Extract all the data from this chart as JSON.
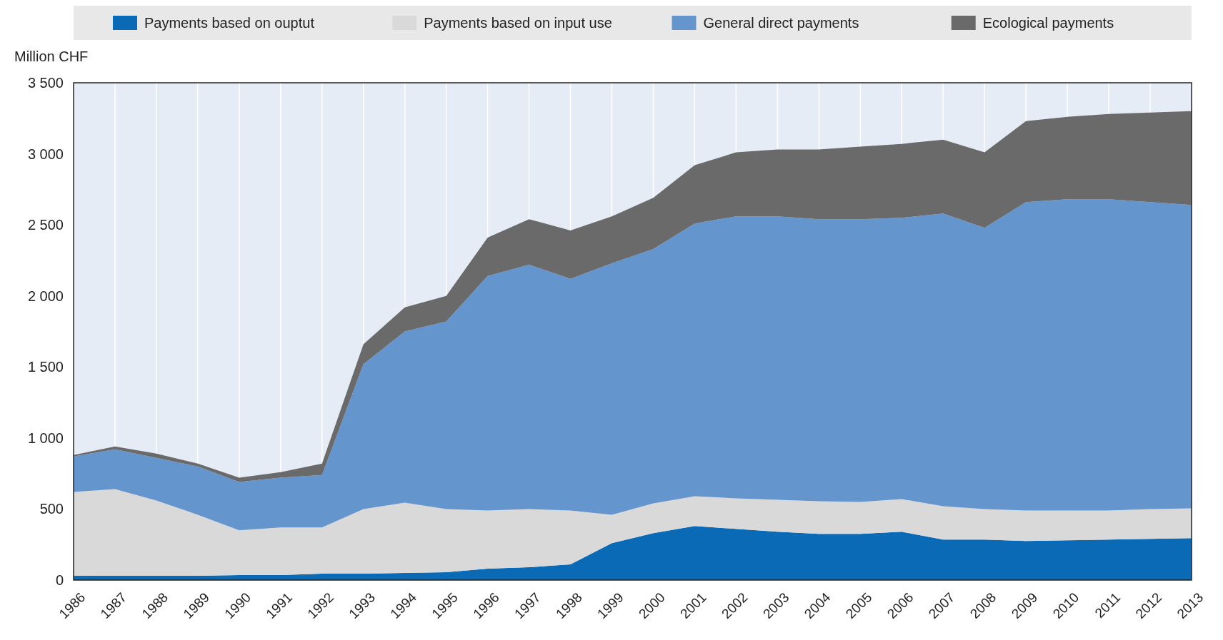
{
  "chart_data": {
    "type": "area",
    "stacked": true,
    "ylabel": "Million CHF",
    "legend": "top",
    "grid": "x",
    "categories": [
      "1986",
      "1987",
      "1988",
      "1989",
      "1990",
      "1991",
      "1992",
      "1993",
      "1994",
      "1995",
      "1996",
      "1997",
      "1998",
      "1999",
      "2000",
      "2001",
      "2002",
      "2003",
      "2004",
      "2005",
      "2006",
      "2007",
      "2008",
      "2009",
      "2010",
      "2011",
      "2012",
      "2013"
    ],
    "ylim": [
      0,
      3500
    ],
    "yticks": [
      0,
      500,
      {
        "value": 1000,
        "label": "1 000"
      },
      {
        "value": 1500,
        "label": "1 500"
      },
      {
        "value": 2000,
        "label": "2 000"
      },
      {
        "value": 2500,
        "label": "2 500"
      },
      {
        "value": 3000,
        "label": "3 000"
      },
      {
        "value": 3500,
        "label": "3 500"
      }
    ],
    "series": [
      {
        "name": "Payments based on ouptut",
        "color": "#0a6ab5",
        "values": [
          30,
          30,
          30,
          30,
          35,
          35,
          45,
          45,
          50,
          55,
          80,
          90,
          110,
          260,
          330,
          380,
          360,
          340,
          325,
          325,
          340,
          285,
          285,
          275,
          280,
          285,
          290,
          295
        ]
      },
      {
        "name": "Payments based on input use",
        "color": "#d9d9d9",
        "values": [
          590,
          610,
          530,
          430,
          315,
          335,
          325,
          455,
          495,
          445,
          410,
          410,
          380,
          200,
          210,
          210,
          215,
          225,
          230,
          225,
          230,
          235,
          215,
          215,
          210,
          205,
          210,
          210
        ]
      },
      {
        "name": "General direct payments",
        "color": "#6495cd",
        "values": [
          250,
          280,
          300,
          340,
          340,
          350,
          370,
          1020,
          1205,
          1320,
          1650,
          1720,
          1630,
          1770,
          1790,
          1920,
          1985,
          1995,
          1985,
          1990,
          1980,
          2060,
          1980,
          2170,
          2190,
          2190,
          2160,
          2135
        ]
      },
      {
        "name": "Ecological payments",
        "color": "#6a6a6a",
        "values": [
          10,
          20,
          30,
          20,
          30,
          40,
          80,
          140,
          170,
          180,
          270,
          320,
          340,
          330,
          360,
          410,
          450,
          470,
          490,
          510,
          520,
          520,
          530,
          570,
          580,
          600,
          630,
          660
        ]
      }
    ]
  }
}
